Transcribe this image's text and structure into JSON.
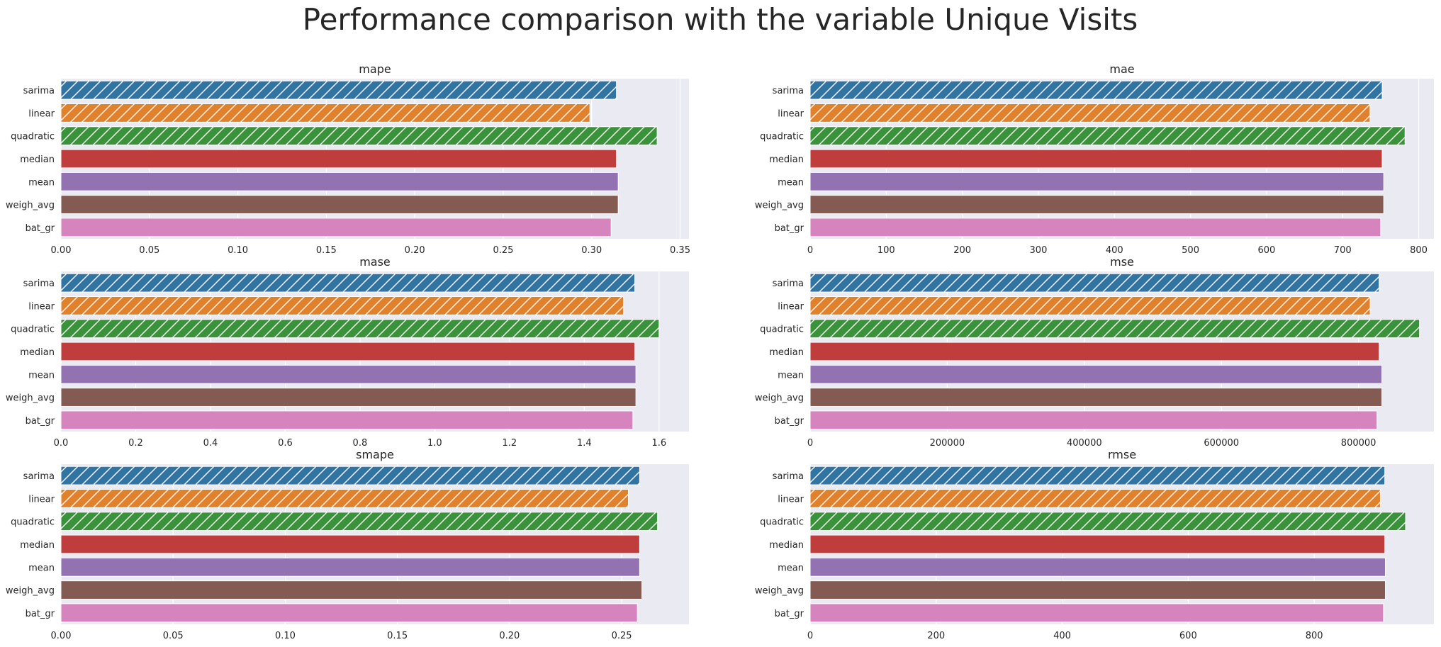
{
  "figure": {
    "title": "Performance comparison with the variable Unique Visits"
  },
  "colors": {
    "sarima": "#3274a1",
    "linear": "#e1812c",
    "quadratic": "#3a923a",
    "median": "#c03d3e",
    "mean": "#9372b2",
    "weigh_avg": "#845b53",
    "bat_gr": "#d684bd",
    "panel_background": "#eaeaf2",
    "grid": "#ffffff"
  },
  "hatched_models": [
    "sarima",
    "linear",
    "quadratic"
  ],
  "chart_data": [
    {
      "type": "bar",
      "orientation": "horizontal",
      "title": "mape",
      "categories": [
        "sarima",
        "linear",
        "quadratic",
        "median",
        "mean",
        "weigh_avg",
        "bat_gr"
      ],
      "values": [
        0.314,
        0.299,
        0.337,
        0.314,
        0.315,
        0.315,
        0.311
      ],
      "xlim": [
        0,
        0.355
      ],
      "xticks": [
        0.0,
        0.05,
        0.1,
        0.15,
        0.2,
        0.25,
        0.3,
        0.35
      ],
      "xtick_labels": [
        "0.00",
        "0.05",
        "0.10",
        "0.15",
        "0.20",
        "0.25",
        "0.30",
        "0.35"
      ],
      "xlabel": "",
      "ylabel": "",
      "grid": true
    },
    {
      "type": "bar",
      "orientation": "horizontal",
      "title": "mae",
      "categories": [
        "sarima",
        "linear",
        "quadratic",
        "median",
        "mean",
        "weigh_avg",
        "bat_gr"
      ],
      "values": [
        752,
        736,
        782,
        752,
        754,
        754,
        750
      ],
      "xlim": [
        0,
        820
      ],
      "xticks": [
        0,
        100,
        200,
        300,
        400,
        500,
        600,
        700,
        800
      ],
      "xtick_labels": [
        "0",
        "100",
        "200",
        "300",
        "400",
        "500",
        "600",
        "700",
        "800"
      ],
      "xlabel": "",
      "ylabel": "",
      "grid": true
    },
    {
      "type": "bar",
      "orientation": "horizontal",
      "title": "mase",
      "categories": [
        "sarima",
        "linear",
        "quadratic",
        "median",
        "mean",
        "weigh_avg",
        "bat_gr"
      ],
      "values": [
        1.535,
        1.505,
        1.6,
        1.535,
        1.538,
        1.538,
        1.53
      ],
      "xlim": [
        0,
        1.68
      ],
      "xticks": [
        0.0,
        0.2,
        0.4,
        0.6,
        0.8,
        1.0,
        1.2,
        1.4,
        1.6
      ],
      "xtick_labels": [
        "0.0",
        "0.2",
        "0.4",
        "0.6",
        "0.8",
        "1.0",
        "1.2",
        "1.4",
        "1.6"
      ],
      "xlabel": "",
      "ylabel": "",
      "grid": true
    },
    {
      "type": "bar",
      "orientation": "horizontal",
      "title": "mse",
      "categories": [
        "sarima",
        "linear",
        "quadratic",
        "median",
        "mean",
        "weigh_avg",
        "bat_gr"
      ],
      "values": [
        830000,
        817000,
        889000,
        830000,
        834000,
        834000,
        827000
      ],
      "xlim": [
        0,
        910000
      ],
      "xticks": [
        0,
        200000,
        400000,
        600000,
        800000
      ],
      "xtick_labels": [
        "0",
        "200000",
        "400000",
        "600000",
        "800000"
      ],
      "xlabel": "",
      "ylabel": "",
      "grid": true
    },
    {
      "type": "bar",
      "orientation": "horizontal",
      "title": "smape",
      "categories": [
        "sarima",
        "linear",
        "quadratic",
        "median",
        "mean",
        "weigh_avg",
        "bat_gr"
      ],
      "values": [
        0.258,
        0.253,
        0.266,
        0.258,
        0.258,
        0.259,
        0.257
      ],
      "xlim": [
        0,
        0.28
      ],
      "xticks": [
        0.0,
        0.05,
        0.1,
        0.15,
        0.2,
        0.25
      ],
      "xtick_labels": [
        "0.00",
        "0.05",
        "0.10",
        "0.15",
        "0.20",
        "0.25"
      ],
      "xlabel": "",
      "ylabel": "",
      "grid": true
    },
    {
      "type": "bar",
      "orientation": "horizontal",
      "title": "rmse",
      "categories": [
        "sarima",
        "linear",
        "quadratic",
        "median",
        "mean",
        "weigh_avg",
        "bat_gr"
      ],
      "values": [
        912,
        905,
        945,
        912,
        913,
        913,
        910
      ],
      "xlim": [
        0,
        990
      ],
      "xticks": [
        0,
        200,
        400,
        600,
        800
      ],
      "xtick_labels": [
        "0",
        "200",
        "400",
        "600",
        "800"
      ],
      "xlabel": "",
      "ylabel": "",
      "grid": true
    }
  ]
}
